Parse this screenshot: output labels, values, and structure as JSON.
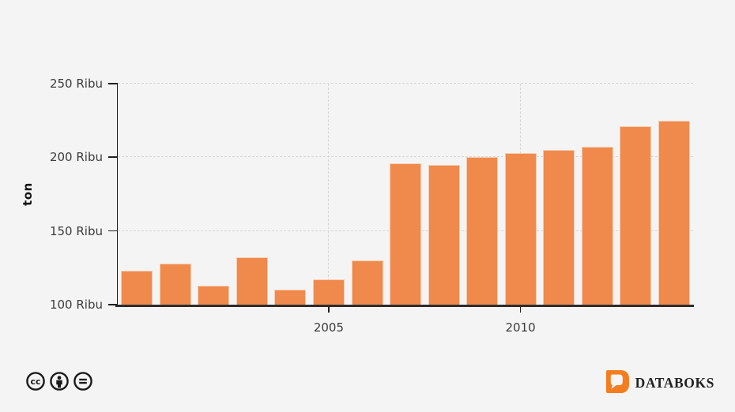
{
  "chart_data": {
    "type": "bar",
    "title": "",
    "x": [
      2000,
      2001,
      2002,
      2003,
      2004,
      2005,
      2006,
      2007,
      2008,
      2009,
      2010,
      2011,
      2012,
      2013,
      2014
    ],
    "values": [
      123,
      128,
      113,
      132,
      110,
      117,
      130,
      196,
      195,
      200,
      203,
      205,
      207,
      221,
      225
    ],
    "unit": "Ribu ton",
    "xlabel": "",
    "ylabel": "ton",
    "ylim": [
      100,
      250
    ],
    "grid": true,
    "legend": "none",
    "y_ticks": [
      {
        "label": "250 Ribu",
        "value": 250
      },
      {
        "label": "200 Ribu",
        "value": 200
      },
      {
        "label": "150 Ribu",
        "value": 150
      },
      {
        "label": "100 Ribu",
        "value": 100
      }
    ],
    "x_ticks": [
      {
        "label": "2005",
        "x": 2005
      },
      {
        "label": "2010",
        "x": 2010
      }
    ],
    "colors": {
      "bar": "#F0894C",
      "background": "#F4F4F4",
      "gridline": "#D5D5D5",
      "axis": "#2D2D2D",
      "tick_text": "#3B3B3B"
    }
  },
  "footer": {
    "license": {
      "icons": [
        "cc-icon",
        "cc-by-icon",
        "cc-nd-icon"
      ]
    },
    "brand": {
      "name": "DATABOKS",
      "logo_color": "#F47D20",
      "text_color": "#222222"
    }
  }
}
